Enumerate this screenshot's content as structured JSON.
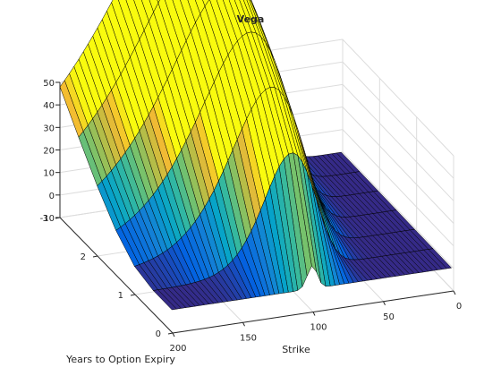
{
  "chart_data": {
    "type": "surface",
    "title": "Vega",
    "xlabel": "Strike",
    "ylabel": "Years to Option Expiry",
    "zlabel": "",
    "xlim": [
      0,
      200
    ],
    "ylim": [
      0,
      3
    ],
    "zlim": [
      -10,
      50
    ],
    "x_ticks": [
      0,
      50,
      100,
      150,
      200
    ],
    "y_ticks": [
      0,
      1,
      2,
      3
    ],
    "z_ticks": [
      -10,
      0,
      10,
      20,
      30,
      40,
      50
    ],
    "x_tick_labels": [
      "0",
      "50",
      "100",
      "150",
      "200"
    ],
    "y_tick_labels": [
      "0",
      "1",
      "2",
      "3"
    ],
    "z_tick_labels": [
      "-10",
      "0",
      "10",
      "20",
      "30",
      "40",
      "50"
    ],
    "grid": true,
    "colormap": "parula",
    "edge_color": "#000000",
    "spot": 100,
    "rate": 0.0,
    "volatility": 0.25,
    "strike_grid": [
      1,
      200
    ],
    "expiry_grid": [
      0.02,
      3
    ],
    "strike_samples": 60,
    "expiry_samples": 6,
    "peak": {
      "strike": 200,
      "expiry": 3,
      "vega": 48
    }
  }
}
